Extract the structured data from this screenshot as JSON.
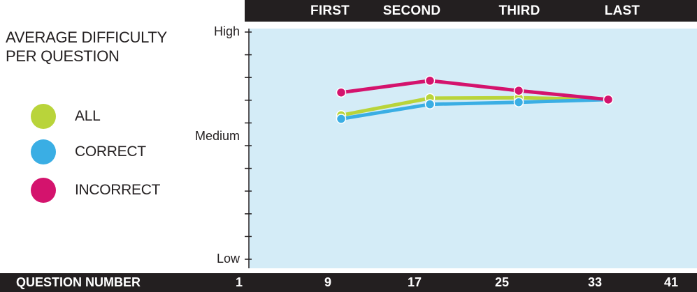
{
  "chart_data": {
    "type": "line",
    "title": "AVERAGE DIFFICULTY PER QUESTION",
    "xlabel": "QUESTION NUMBER",
    "x_ticks": [
      "1",
      "9",
      "17",
      "25",
      "33",
      "41"
    ],
    "top_labels": [
      "FIRST",
      "SECOND",
      "THIRD",
      "LAST"
    ],
    "y_tick_labels": [
      "High",
      "Medium",
      "Low"
    ],
    "x": [
      9,
      17,
      25,
      33
    ],
    "xlim": [
      1,
      41
    ],
    "ylim": [
      0,
      10
    ],
    "series": [
      {
        "name": "ALL",
        "color": "#b9d43a",
        "values": [
          6.34,
          7.09,
          7.11,
          7.03
        ]
      },
      {
        "name": "CORRECT",
        "color": "#3aaee4",
        "values": [
          6.18,
          6.82,
          6.91,
          7.03
        ]
      },
      {
        "name": "INCORRECT",
        "color": "#d4136d",
        "values": [
          7.34,
          7.86,
          7.42,
          7.03
        ]
      }
    ],
    "grid": false,
    "legend_position": "left"
  },
  "colors": {
    "plot_background": "#d4ecf7",
    "bar_background": "#231f20"
  }
}
